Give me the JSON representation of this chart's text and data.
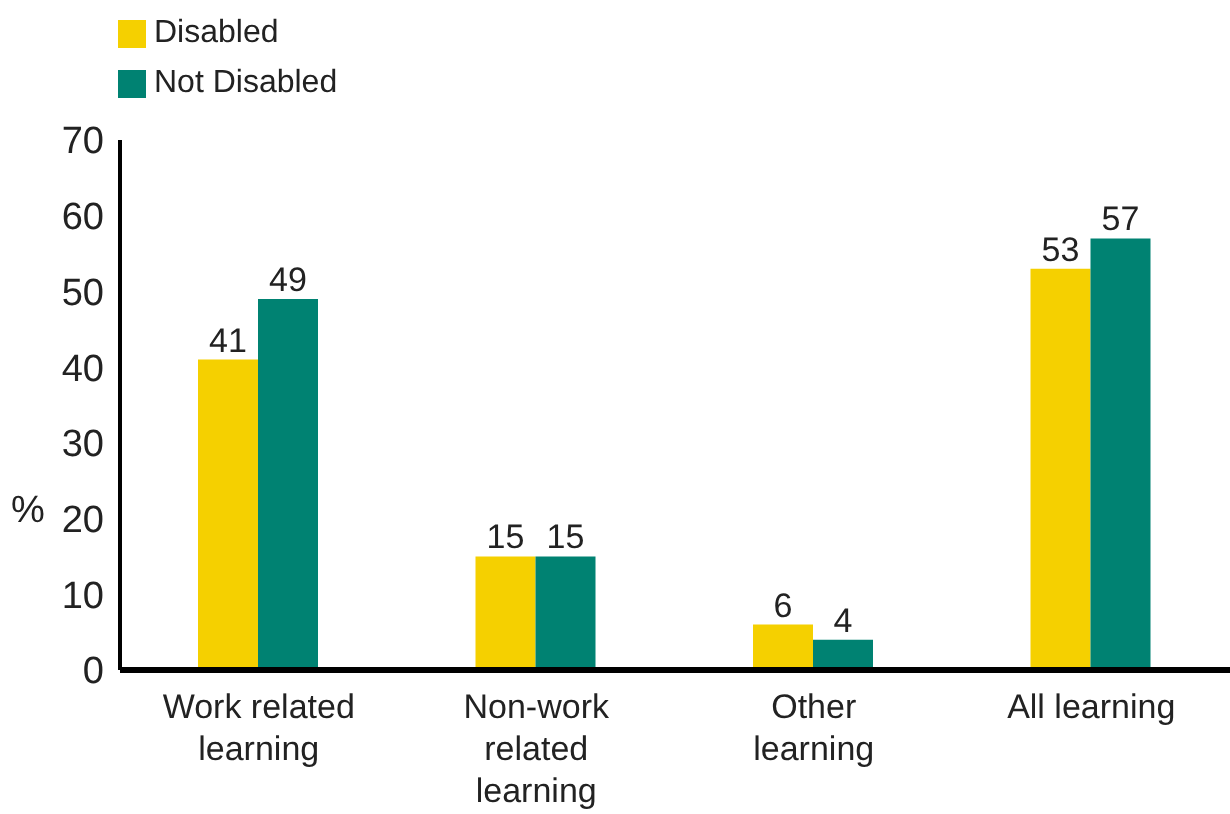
{
  "chart_data": {
    "type": "bar",
    "ylabel": "%",
    "categories": [
      "Work related learning",
      "Non-work related learning",
      "Other learning",
      "All learning"
    ],
    "series": [
      {
        "name": "Disabled",
        "color": "#f5d000",
        "values": [
          41,
          15,
          6,
          53
        ]
      },
      {
        "name": "Not Disabled",
        "color": "#008272",
        "values": [
          49,
          15,
          4,
          57
        ]
      }
    ],
    "ylim": [
      0,
      70
    ],
    "yticks": [
      0,
      10,
      20,
      30,
      40,
      50,
      60,
      70
    ],
    "grid": false,
    "legend": "top left",
    "data_labels": true
  }
}
